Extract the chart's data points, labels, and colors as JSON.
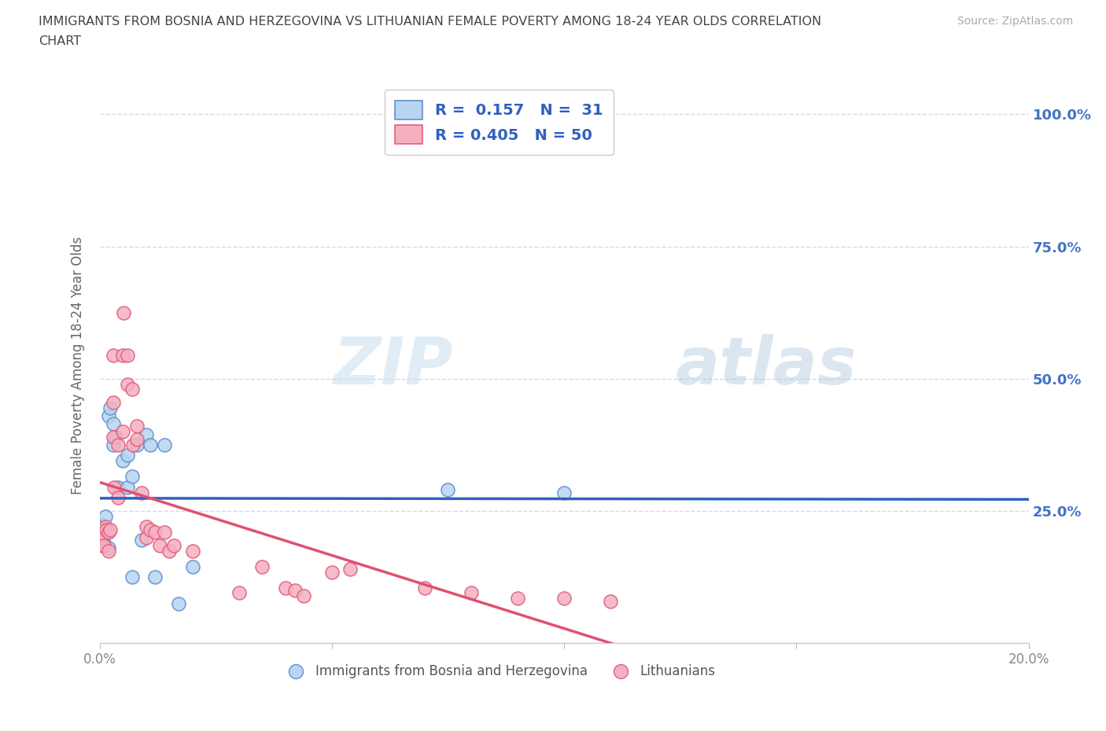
{
  "title_line1": "IMMIGRANTS FROM BOSNIA AND HERZEGOVINA VS LITHUANIAN FEMALE POVERTY AMONG 18-24 YEAR OLDS CORRELATION",
  "title_line2": "CHART",
  "source_text": "Source: ZipAtlas.com",
  "ylabel": "Female Poverty Among 18-24 Year Olds",
  "xlim": [
    0.0,
    0.2
  ],
  "ylim": [
    0.0,
    1.05
  ],
  "yticks": [
    0.0,
    0.25,
    0.5,
    0.75,
    1.0
  ],
  "xticks": [
    0.0,
    0.05,
    0.1,
    0.15,
    0.2
  ],
  "xtick_labels_show": [
    "0.0%",
    "",
    "",
    "",
    "20.0%"
  ],
  "ytick_labels_right": [
    "25.0%",
    "50.0%",
    "75.0%",
    "100.0%"
  ],
  "yticks_right": [
    0.25,
    0.5,
    0.75,
    1.0
  ],
  "watermark_line1": "ZIP",
  "watermark_line2": "atlas",
  "blue_R": 0.157,
  "blue_N": 31,
  "pink_R": 0.405,
  "pink_N": 50,
  "blue_color": "#b8d4f0",
  "pink_color": "#f5b0c0",
  "blue_edge_color": "#6090d0",
  "pink_edge_color": "#e06080",
  "blue_line_color": "#3060c0",
  "pink_line_color": "#e05070",
  "background_color": "#ffffff",
  "grid_color": "#d8d8e8",
  "title_color": "#444444",
  "axis_label_color": "#666666",
  "tick_color": "#888888",
  "right_tick_color": "#4472c4",
  "legend_label1": "Immigrants from Bosnia and Herzegovina",
  "legend_label2": "Lithuanians",
  "blue_scatter": [
    [
      0.0002,
      0.215
    ],
    [
      0.0003,
      0.225
    ],
    [
      0.0005,
      0.2
    ],
    [
      0.0005,
      0.195
    ],
    [
      0.001,
      0.21
    ],
    [
      0.001,
      0.205
    ],
    [
      0.001,
      0.19
    ],
    [
      0.0012,
      0.24
    ],
    [
      0.0015,
      0.215
    ],
    [
      0.002,
      0.18
    ],
    [
      0.002,
      0.43
    ],
    [
      0.0022,
      0.445
    ],
    [
      0.003,
      0.375
    ],
    [
      0.003,
      0.415
    ],
    [
      0.0035,
      0.39
    ],
    [
      0.004,
      0.295
    ],
    [
      0.005,
      0.345
    ],
    [
      0.006,
      0.355
    ],
    [
      0.006,
      0.295
    ],
    [
      0.007,
      0.315
    ],
    [
      0.007,
      0.125
    ],
    [
      0.008,
      0.375
    ],
    [
      0.009,
      0.195
    ],
    [
      0.01,
      0.395
    ],
    [
      0.011,
      0.375
    ],
    [
      0.012,
      0.125
    ],
    [
      0.014,
      0.375
    ],
    [
      0.017,
      0.075
    ],
    [
      0.02,
      0.145
    ],
    [
      0.075,
      0.29
    ],
    [
      0.1,
      0.285
    ]
  ],
  "pink_scatter": [
    [
      0.0001,
      0.195
    ],
    [
      0.0002,
      0.205
    ],
    [
      0.0003,
      0.215
    ],
    [
      0.0005,
      0.185
    ],
    [
      0.0005,
      0.2
    ],
    [
      0.001,
      0.215
    ],
    [
      0.001,
      0.205
    ],
    [
      0.001,
      0.185
    ],
    [
      0.0012,
      0.22
    ],
    [
      0.0015,
      0.215
    ],
    [
      0.002,
      0.175
    ],
    [
      0.002,
      0.21
    ],
    [
      0.0022,
      0.215
    ],
    [
      0.003,
      0.39
    ],
    [
      0.003,
      0.455
    ],
    [
      0.003,
      0.545
    ],
    [
      0.0032,
      0.295
    ],
    [
      0.004,
      0.375
    ],
    [
      0.004,
      0.275
    ],
    [
      0.005,
      0.4
    ],
    [
      0.005,
      0.545
    ],
    [
      0.0052,
      0.625
    ],
    [
      0.006,
      0.49
    ],
    [
      0.006,
      0.545
    ],
    [
      0.007,
      0.48
    ],
    [
      0.0072,
      0.375
    ],
    [
      0.008,
      0.41
    ],
    [
      0.008,
      0.385
    ],
    [
      0.009,
      0.285
    ],
    [
      0.01,
      0.2
    ],
    [
      0.01,
      0.22
    ],
    [
      0.011,
      0.215
    ],
    [
      0.012,
      0.21
    ],
    [
      0.013,
      0.185
    ],
    [
      0.014,
      0.21
    ],
    [
      0.015,
      0.175
    ],
    [
      0.016,
      0.185
    ],
    [
      0.02,
      0.175
    ],
    [
      0.03,
      0.095
    ],
    [
      0.035,
      0.145
    ],
    [
      0.04,
      0.105
    ],
    [
      0.042,
      0.1
    ],
    [
      0.044,
      0.09
    ],
    [
      0.05,
      0.135
    ],
    [
      0.054,
      0.14
    ],
    [
      0.07,
      0.105
    ],
    [
      0.08,
      0.095
    ],
    [
      0.09,
      0.085
    ],
    [
      0.1,
      0.085
    ],
    [
      0.11,
      0.08
    ]
  ]
}
